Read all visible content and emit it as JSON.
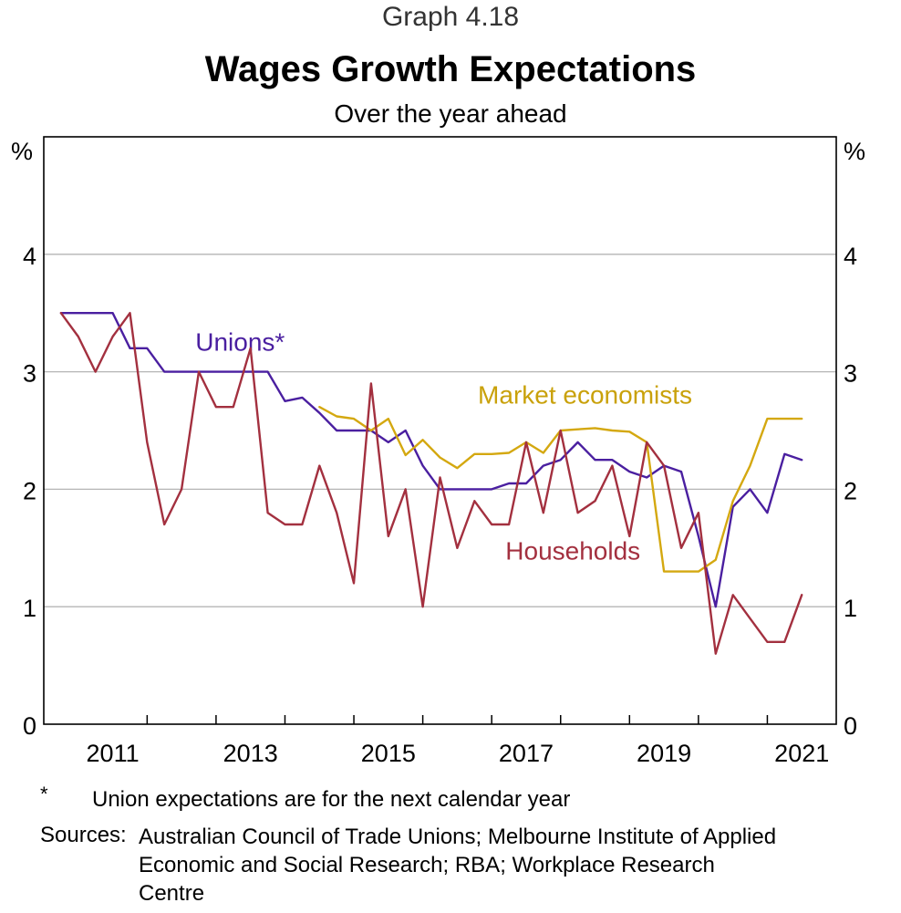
{
  "header": {
    "graph_number": "Graph 4.18",
    "title": "Wages Growth Expectations",
    "subtitle": "Over the year ahead"
  },
  "chart_data": {
    "type": "line",
    "ylabel_left": "%",
    "ylabel_right": "%",
    "ylim": [
      0,
      5
    ],
    "y_ticks": [
      0,
      1,
      2,
      3,
      4
    ],
    "xlim": [
      2010.5,
      2022.0
    ],
    "x_tick_labels": [
      "2011",
      "2013",
      "2015",
      "2017",
      "2019",
      "2021"
    ],
    "x_tick_label_years": [
      2011,
      2013,
      2015,
      2017,
      2019,
      2021
    ],
    "x_tick_marks": [
      2012,
      2013,
      2014,
      2015,
      2016,
      2017,
      2018,
      2019,
      2020,
      2021
    ],
    "grid": true,
    "series": [
      {
        "name": "Unions*",
        "color": "#4a1fa0",
        "label_pos": [
          2012.7,
          3.18
        ],
        "label_color": "#4a1fa0",
        "x": [
          2010.75,
          2011.0,
          2011.25,
          2011.5,
          2011.75,
          2012.0,
          2012.25,
          2012.5,
          2012.75,
          2013.0,
          2013.25,
          2013.5,
          2013.75,
          2014.0,
          2014.25,
          2014.5,
          2014.75,
          2015.0,
          2015.25,
          2015.5,
          2015.75,
          2016.0,
          2016.25,
          2016.5,
          2016.75,
          2017.0,
          2017.25,
          2017.5,
          2017.75,
          2018.0,
          2018.25,
          2018.5,
          2018.75,
          2019.0,
          2019.25,
          2019.5,
          2019.75,
          2020.0,
          2020.25,
          2020.5,
          2020.75,
          2021.0,
          2021.25,
          2021.5
        ],
        "values": [
          3.5,
          3.5,
          3.5,
          3.5,
          3.2,
          3.2,
          3.0,
          3.0,
          3.0,
          3.0,
          3.0,
          3.0,
          3.0,
          2.75,
          2.78,
          2.65,
          2.5,
          2.5,
          2.5,
          2.4,
          2.5,
          2.2,
          2.0,
          2.0,
          2.0,
          2.0,
          2.05,
          2.05,
          2.2,
          2.25,
          2.4,
          2.25,
          2.25,
          2.15,
          2.1,
          2.2,
          2.15,
          1.6,
          1.0,
          1.85,
          2.0,
          1.8,
          2.3,
          2.25
        ]
      },
      {
        "name": "Market economists",
        "color": "#d4a810",
        "label_pos": [
          2016.8,
          2.73
        ],
        "label_color": "#c9a10a",
        "x": [
          2014.5,
          2014.75,
          2015.0,
          2015.25,
          2015.5,
          2015.75,
          2016.0,
          2016.25,
          2016.5,
          2016.75,
          2017.0,
          2017.25,
          2017.5,
          2017.75,
          2018.0,
          2018.25,
          2018.5,
          2018.75,
          2019.0,
          2019.25,
          2019.5,
          2019.75,
          2020.0,
          2020.25,
          2020.5,
          2020.75,
          2021.0,
          2021.25,
          2021.5
        ],
        "values": [
          2.7,
          2.62,
          2.6,
          2.5,
          2.6,
          2.29,
          2.42,
          2.27,
          2.18,
          2.3,
          2.3,
          2.31,
          2.4,
          2.31,
          2.5,
          2.51,
          2.52,
          2.5,
          2.49,
          2.4,
          1.3,
          1.3,
          1.3,
          1.4,
          1.9,
          2.2,
          2.6,
          2.6,
          2.6
        ]
      },
      {
        "name": "Households",
        "color": "#a3303f",
        "label_pos": [
          2017.2,
          1.4
        ],
        "label_color": "#a3303f",
        "x": [
          2010.75,
          2011.0,
          2011.25,
          2011.5,
          2011.75,
          2012.0,
          2012.25,
          2012.5,
          2012.75,
          2013.0,
          2013.25,
          2013.5,
          2013.75,
          2014.0,
          2014.25,
          2014.5,
          2014.75,
          2015.0,
          2015.25,
          2015.5,
          2015.75,
          2016.0,
          2016.25,
          2016.5,
          2016.75,
          2017.0,
          2017.25,
          2017.5,
          2017.75,
          2018.0,
          2018.25,
          2018.5,
          2018.75,
          2019.0,
          2019.25,
          2019.5,
          2019.75,
          2020.0,
          2020.25,
          2020.5,
          2020.75,
          2021.0,
          2021.25,
          2021.5
        ],
        "values": [
          3.5,
          3.3,
          3.0,
          3.3,
          3.5,
          2.4,
          1.7,
          2.0,
          3.0,
          2.7,
          2.7,
          3.2,
          1.8,
          1.7,
          1.7,
          2.2,
          1.8,
          1.2,
          2.9,
          1.6,
          2.0,
          1.0,
          2.1,
          1.5,
          1.9,
          1.7,
          1.7,
          2.4,
          1.8,
          2.5,
          1.8,
          1.9,
          2.2,
          1.6,
          2.4,
          2.2,
          1.5,
          1.8,
          0.6,
          1.1,
          0.9,
          0.7,
          0.7,
          1.1
        ]
      }
    ]
  },
  "footnotes": {
    "asterisk": "*",
    "note": "Union expectations are for the next calendar year",
    "sources_label": "Sources:",
    "sources_text": "Australian Council of Trade Unions; Melbourne Institute of Applied Economic and Social Research; RBA; Workplace Research Centre"
  }
}
